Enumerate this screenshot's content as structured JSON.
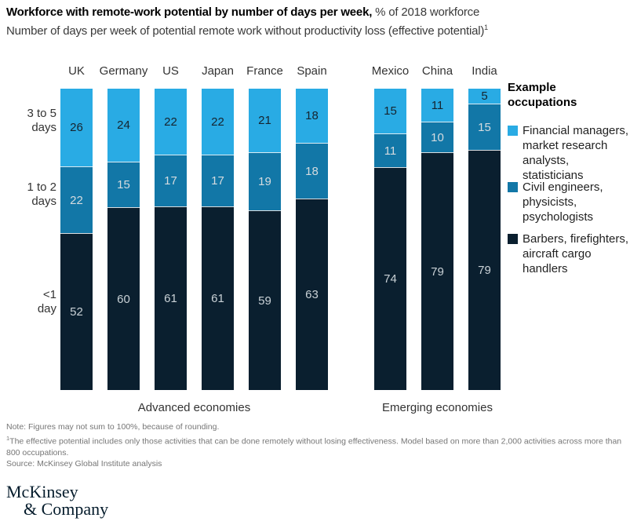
{
  "title": {
    "bold": "Workforce with remote-work potential by number of days per week,",
    "unit": " % of 2018 workforce",
    "subtitle": "Number of days per week of potential remote work without productivity loss (effective potential)",
    "subtitle_sup": "1"
  },
  "chart_data": {
    "type": "bar",
    "stacked": true,
    "unit": "% of 2018 workforce",
    "ylim": [
      0,
      100
    ],
    "categories": [
      "UK",
      "Germany",
      "US",
      "Japan",
      "France",
      "Spain",
      "Mexico",
      "China",
      "India"
    ],
    "groups": [
      {
        "label": "Advanced economies",
        "categories": [
          "UK",
          "Germany",
          "US",
          "Japan",
          "France",
          "Spain"
        ]
      },
      {
        "label": "Emerging economies",
        "categories": [
          "Mexico",
          "China",
          "India"
        ]
      }
    ],
    "series": [
      {
        "name": "3 to 5 days",
        "color": "#29ABE4",
        "value_color": "#16242F",
        "values": [
          26,
          24,
          22,
          22,
          21,
          18,
          15,
          11,
          5
        ]
      },
      {
        "name": "1 to 2 days",
        "color": "#1277A7",
        "value_color": "#D5DBDF",
        "values": [
          22,
          15,
          17,
          17,
          19,
          18,
          11,
          10,
          15
        ]
      },
      {
        "name": "<1 day",
        "color": "#0A1F2F",
        "value_color": "#C9D1D6",
        "values": [
          52,
          60,
          61,
          61,
          59,
          63,
          74,
          79,
          79
        ]
      }
    ],
    "row_labels": [
      [
        "3 to 5",
        "days"
      ],
      [
        "1 to 2",
        "days"
      ],
      [
        "<1",
        "day"
      ]
    ]
  },
  "legend": {
    "title": [
      "Example",
      "occupations"
    ],
    "items": [
      {
        "lines": [
          "Financial managers,",
          "market research",
          "analysts, statisticians"
        ],
        "color": "#29ABE4"
      },
      {
        "lines": [
          "Civil engineers,",
          "physicists,",
          "psychologists"
        ],
        "color": "#1277A7"
      },
      {
        "lines": [
          "Barbers, firefighters,",
          "aircraft cargo",
          "handlers"
        ],
        "color": "#0A1F2F"
      }
    ]
  },
  "notes": {
    "note": "Note: Figures may not sum to 100%, because of rounding.",
    "footnote_sup": "1",
    "footnote": "The effective potential includes only those activities that can be done remotely without losing effectiveness. Model based on more than 2,000 activities across more than 800 occupations.",
    "source": "Source: McKinsey Global Institute analysis"
  },
  "logo": {
    "line1": "McKinsey",
    "line2": "& Company"
  }
}
